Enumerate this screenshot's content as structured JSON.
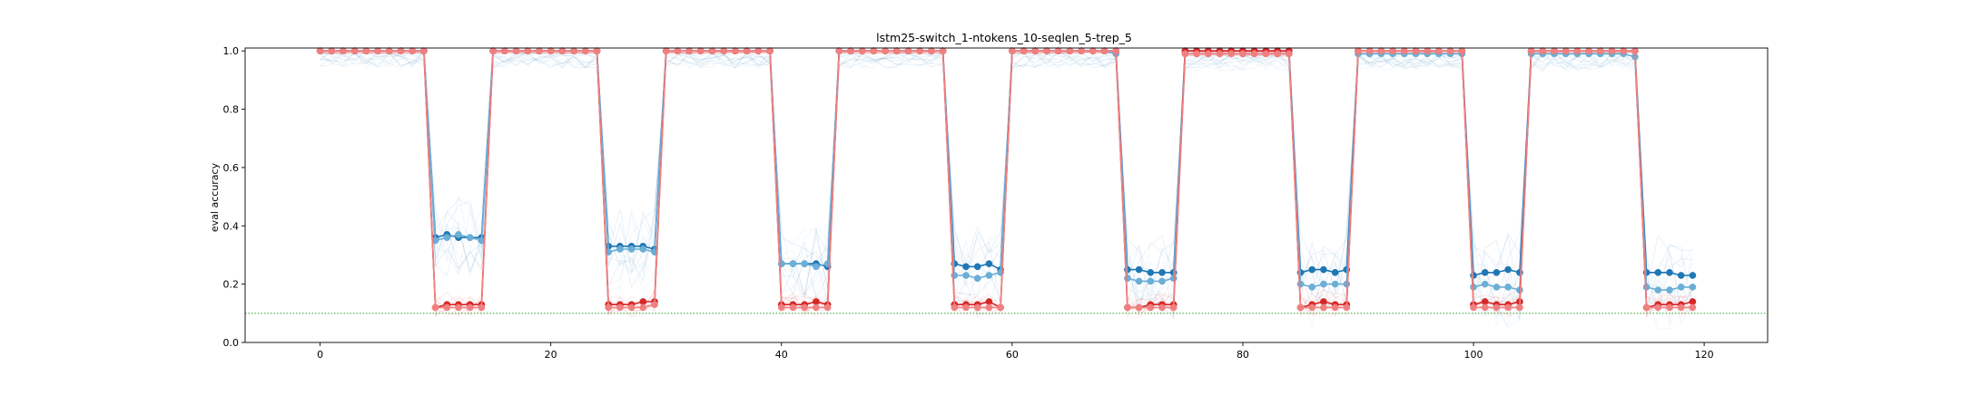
{
  "chart_data": {
    "type": "line",
    "title": "lstm25-switch_1-ntokens_10-seqlen_5-trep_5",
    "xlabel": "",
    "ylabel": "eval accuracy",
    "xlim": [
      -6.5,
      125.5
    ],
    "ylim": [
      0.0,
      1.01
    ],
    "xticks": [
      0,
      20,
      40,
      60,
      80,
      100,
      120
    ],
    "yticks": [
      0.0,
      0.2,
      0.4,
      0.6,
      0.8,
      1.0
    ],
    "grid": false,
    "legend": "none",
    "reference_line": {
      "y": 0.1,
      "color": "#2ca02c",
      "style": "dotted"
    },
    "series": [
      {
        "color": "#1f77b4",
        "marker": "circle",
        "x": [
          0,
          1,
          2,
          3,
          4,
          5,
          6,
          7,
          8,
          9,
          10,
          11,
          12,
          13,
          14,
          15,
          16,
          17,
          18,
          19,
          20,
          21,
          22,
          23,
          24,
          25,
          26,
          27,
          28,
          29,
          30,
          31,
          32,
          33,
          34,
          35,
          36,
          37,
          38,
          39,
          40,
          41,
          42,
          43,
          44,
          45,
          46,
          47,
          48,
          49,
          50,
          51,
          52,
          53,
          54,
          55,
          56,
          57,
          58,
          59,
          60,
          61,
          62,
          63,
          64,
          65,
          66,
          67,
          68,
          69,
          70,
          71,
          72,
          73,
          74,
          75,
          76,
          77,
          78,
          79,
          80,
          81,
          82,
          83,
          84,
          85,
          86,
          87,
          88,
          89,
          90,
          91,
          92,
          93,
          94,
          95,
          96,
          97,
          98,
          99,
          100,
          101,
          102,
          103,
          104,
          105,
          106,
          107,
          108,
          109,
          110,
          111,
          112,
          113,
          114,
          115,
          116,
          117,
          118,
          119
        ],
        "values": [
          1,
          1,
          1,
          1,
          1,
          1,
          1,
          1,
          1,
          1,
          0.36,
          0.37,
          0.36,
          0.36,
          0.36,
          1,
          1,
          1,
          1,
          1,
          1,
          1,
          1,
          1,
          1,
          0.33,
          0.33,
          0.33,
          0.33,
          0.32,
          1,
          1,
          1,
          1,
          1,
          1,
          1,
          1,
          1,
          1,
          0.27,
          0.27,
          0.27,
          0.27,
          0.26,
          1,
          1,
          1,
          1,
          1,
          1,
          1,
          1,
          1,
          1,
          0.27,
          0.26,
          0.26,
          0.27,
          0.25,
          1,
          1,
          1,
          1,
          1,
          1,
          1,
          1,
          1,
          1,
          0.25,
          0.25,
          0.24,
          0.24,
          0.24,
          1,
          1,
          1,
          1,
          1,
          1,
          1,
          1,
          1,
          1,
          0.24,
          0.25,
          0.25,
          0.24,
          0.25,
          1,
          1,
          1,
          1,
          1,
          1,
          1,
          1,
          1,
          1,
          0.23,
          0.24,
          0.24,
          0.25,
          0.24,
          1,
          1,
          1,
          1,
          1,
          1,
          1,
          1,
          1,
          1,
          0.24,
          0.24,
          0.24,
          0.23,
          0.23
        ]
      },
      {
        "color": "#6baed6",
        "marker": "circle",
        "x": [
          0,
          1,
          2,
          3,
          4,
          5,
          6,
          7,
          8,
          9,
          10,
          11,
          12,
          13,
          14,
          15,
          16,
          17,
          18,
          19,
          20,
          21,
          22,
          23,
          24,
          25,
          26,
          27,
          28,
          29,
          30,
          31,
          32,
          33,
          34,
          35,
          36,
          37,
          38,
          39,
          40,
          41,
          42,
          43,
          44,
          45,
          46,
          47,
          48,
          49,
          50,
          51,
          52,
          53,
          54,
          55,
          56,
          57,
          58,
          59,
          60,
          61,
          62,
          63,
          64,
          65,
          66,
          67,
          68,
          69,
          70,
          71,
          72,
          73,
          74,
          75,
          76,
          77,
          78,
          79,
          80,
          81,
          82,
          83,
          84,
          85,
          86,
          87,
          88,
          89,
          90,
          91,
          92,
          93,
          94,
          95,
          96,
          97,
          98,
          99,
          100,
          101,
          102,
          103,
          104,
          105,
          106,
          107,
          108,
          109,
          110,
          111,
          112,
          113,
          114,
          115,
          116,
          117,
          118,
          119
        ],
        "values": [
          1,
          1,
          1,
          1,
          1,
          1,
          1,
          1,
          1,
          1,
          0.35,
          0.36,
          0.37,
          0.36,
          0.35,
          1,
          1,
          1,
          1,
          1,
          1,
          1,
          1,
          1,
          1,
          0.31,
          0.32,
          0.32,
          0.32,
          0.31,
          1,
          1,
          1,
          1,
          1,
          1,
          1,
          1,
          1,
          1,
          0.27,
          0.27,
          0.27,
          0.26,
          0.27,
          1,
          1,
          1,
          1,
          1,
          1,
          1,
          1,
          1,
          1,
          0.23,
          0.23,
          0.22,
          0.23,
          0.24,
          1,
          1,
          1,
          1,
          1,
          1,
          1,
          1,
          1,
          0.99,
          0.22,
          0.21,
          0.21,
          0.21,
          0.22,
          0.99,
          0.99,
          0.99,
          0.99,
          0.99,
          0.99,
          0.99,
          0.99,
          0.99,
          0.99,
          0.2,
          0.19,
          0.2,
          0.2,
          0.2,
          0.99,
          0.99,
          0.99,
          0.99,
          0.99,
          0.99,
          0.99,
          0.99,
          0.99,
          0.99,
          0.19,
          0.2,
          0.19,
          0.19,
          0.18,
          0.99,
          0.99,
          0.99,
          0.99,
          0.99,
          0.99,
          0.99,
          0.99,
          0.99,
          0.98,
          0.19,
          0.18,
          0.18,
          0.19,
          0.19
        ]
      },
      {
        "color": "#d62728",
        "marker": "circle",
        "x": [
          0,
          1,
          2,
          3,
          4,
          5,
          6,
          7,
          8,
          9,
          10,
          11,
          12,
          13,
          14,
          15,
          16,
          17,
          18,
          19,
          20,
          21,
          22,
          23,
          24,
          25,
          26,
          27,
          28,
          29,
          30,
          31,
          32,
          33,
          34,
          35,
          36,
          37,
          38,
          39,
          40,
          41,
          42,
          43,
          44,
          45,
          46,
          47,
          48,
          49,
          50,
          51,
          52,
          53,
          54,
          55,
          56,
          57,
          58,
          59,
          60,
          61,
          62,
          63,
          64,
          65,
          66,
          67,
          68,
          69,
          70,
          71,
          72,
          73,
          74,
          75,
          76,
          77,
          78,
          79,
          80,
          81,
          82,
          83,
          84,
          85,
          86,
          87,
          88,
          89,
          90,
          91,
          92,
          93,
          94,
          95,
          96,
          97,
          98,
          99,
          100,
          101,
          102,
          103,
          104,
          105,
          106,
          107,
          108,
          109,
          110,
          111,
          112,
          113,
          114,
          115,
          116,
          117,
          118,
          119
        ],
        "values": [
          1,
          1,
          1,
          1,
          1,
          1,
          1,
          1,
          1,
          1,
          0.12,
          0.13,
          0.13,
          0.13,
          0.13,
          1,
          1,
          1,
          1,
          1,
          1,
          1,
          1,
          1,
          1,
          0.13,
          0.13,
          0.13,
          0.14,
          0.14,
          1,
          1,
          1,
          1,
          1,
          1,
          1,
          1,
          1,
          1,
          0.13,
          0.13,
          0.13,
          0.14,
          0.13,
          1,
          1,
          1,
          1,
          1,
          1,
          1,
          1,
          1,
          1,
          0.13,
          0.13,
          0.13,
          0.14,
          0.12,
          1,
          1,
          1,
          1,
          1,
          1,
          1,
          1,
          1,
          1,
          0.12,
          0.12,
          0.13,
          0.13,
          0.13,
          1,
          1,
          1,
          1,
          1,
          1,
          1,
          1,
          1,
          1,
          0.12,
          0.13,
          0.14,
          0.13,
          0.13,
          1,
          1,
          1,
          1,
          1,
          1,
          1,
          1,
          1,
          1,
          0.13,
          0.14,
          0.13,
          0.13,
          0.14,
          1,
          1,
          1,
          1,
          1,
          1,
          1,
          1,
          1,
          1,
          0.12,
          0.13,
          0.13,
          0.13,
          0.14
        ]
      },
      {
        "color": "#f08080",
        "marker": "circle",
        "x": [
          0,
          1,
          2,
          3,
          4,
          5,
          6,
          7,
          8,
          9,
          10,
          11,
          12,
          13,
          14,
          15,
          16,
          17,
          18,
          19,
          20,
          21,
          22,
          23,
          24,
          25,
          26,
          27,
          28,
          29,
          30,
          31,
          32,
          33,
          34,
          35,
          36,
          37,
          38,
          39,
          40,
          41,
          42,
          43,
          44,
          45,
          46,
          47,
          48,
          49,
          50,
          51,
          52,
          53,
          54,
          55,
          56,
          57,
          58,
          59,
          60,
          61,
          62,
          63,
          64,
          65,
          66,
          67,
          68,
          69,
          70,
          71,
          72,
          73,
          74,
          75,
          76,
          77,
          78,
          79,
          80,
          81,
          82,
          83,
          84,
          85,
          86,
          87,
          88,
          89,
          90,
          91,
          92,
          93,
          94,
          95,
          96,
          97,
          98,
          99,
          100,
          101,
          102,
          103,
          104,
          105,
          106,
          107,
          108,
          109,
          110,
          111,
          112,
          113,
          114,
          115,
          116,
          117,
          118,
          119
        ],
        "values": [
          1,
          1,
          1,
          1,
          1,
          1,
          1,
          1,
          1,
          1,
          0.12,
          0.12,
          0.12,
          0.12,
          0.12,
          1,
          1,
          1,
          1,
          1,
          1,
          1,
          1,
          1,
          1,
          0.12,
          0.12,
          0.12,
          0.12,
          0.13,
          1,
          1,
          1,
          1,
          1,
          1,
          1,
          1,
          1,
          1,
          0.12,
          0.12,
          0.12,
          0.12,
          0.12,
          1,
          1,
          1,
          1,
          1,
          1,
          1,
          1,
          1,
          1,
          0.12,
          0.12,
          0.12,
          0.12,
          0.12,
          1,
          1,
          1,
          1,
          1,
          1,
          1,
          1,
          1,
          1,
          0.12,
          0.12,
          0.12,
          0.12,
          0.12,
          0.99,
          0.99,
          0.99,
          0.99,
          0.99,
          0.99,
          0.99,
          0.99,
          0.99,
          0.99,
          0.12,
          0.12,
          0.12,
          0.12,
          0.12,
          1,
          1,
          1,
          1,
          1,
          1,
          1,
          1,
          1,
          1,
          0.12,
          0.12,
          0.12,
          0.12,
          0.12,
          1,
          1,
          1,
          1,
          1,
          1,
          1,
          1,
          1,
          1,
          0.12,
          0.12,
          0.12,
          0.12,
          0.12
        ]
      }
    ]
  }
}
